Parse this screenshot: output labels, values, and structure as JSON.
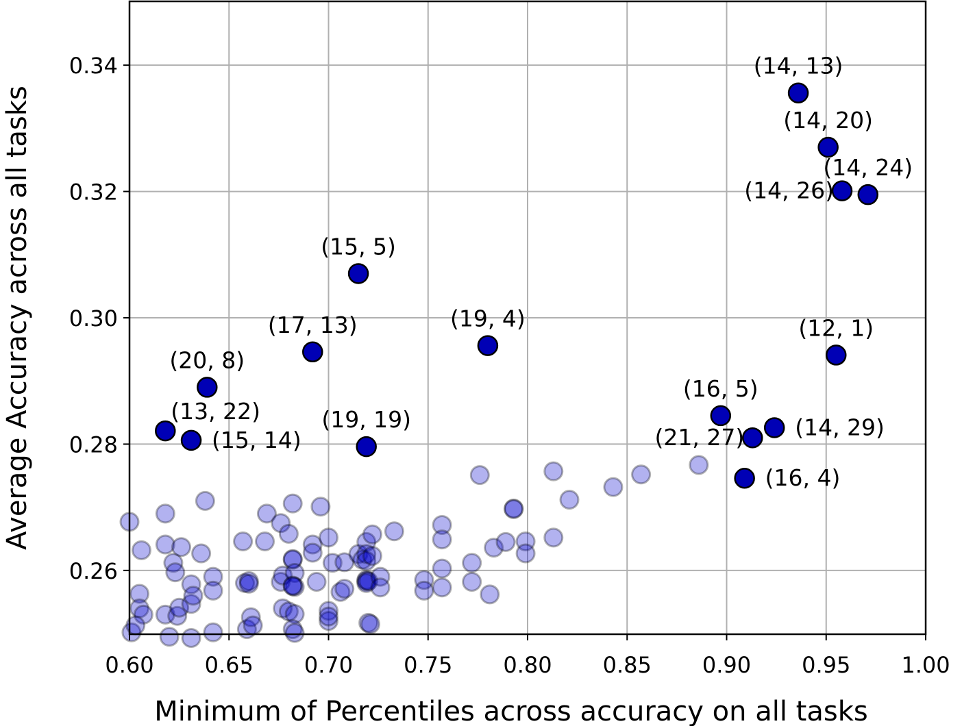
{
  "chart_data": {
    "type": "scatter",
    "xlabel": "Minimum of Percentiles across accuracy on all tasks",
    "ylabel": "Average Accuracy across all tasks",
    "xlim": [
      0.6,
      1.0
    ],
    "ylim": [
      0.2499,
      0.3501
    ],
    "xticks": [
      0.6,
      0.65,
      0.7,
      0.75,
      0.8,
      0.85,
      0.9,
      0.95,
      1.0
    ],
    "xtick_labels": [
      "0.60",
      "0.65",
      "0.70",
      "0.75",
      "0.80",
      "0.85",
      "0.90",
      "0.95",
      "1.00"
    ],
    "yticks": [
      0.26,
      0.28,
      0.3,
      0.32,
      0.34
    ],
    "ytick_labels": [
      "0.26",
      "0.28",
      "0.30",
      "0.32",
      "0.34"
    ],
    "grid": true,
    "highlight_color": "#0000b5",
    "background_color": "#0000cd",
    "highlighted": [
      {
        "label": "(14, 13)",
        "x": 0.936,
        "y": 0.3356,
        "label_pos": "above"
      },
      {
        "label": "(14, 20)",
        "x": 0.951,
        "y": 0.327,
        "label_pos": "above"
      },
      {
        "label": "(14, 24)",
        "x": 0.971,
        "y": 0.3195,
        "label_pos": "above"
      },
      {
        "label": "(14, 26)",
        "x": 0.958,
        "y": 0.3201,
        "label_pos": "left"
      },
      {
        "label": "(15, 5)",
        "x": 0.715,
        "y": 0.307,
        "label_pos": "above"
      },
      {
        "label": "(19, 4)",
        "x": 0.78,
        "y": 0.2956,
        "label_pos": "above"
      },
      {
        "label": "(17, 13)",
        "x": 0.692,
        "y": 0.2946,
        "label_pos": "above"
      },
      {
        "label": "(12, 1)",
        "x": 0.955,
        "y": 0.2941,
        "label_pos": "above"
      },
      {
        "label": "(20, 8)",
        "x": 0.639,
        "y": 0.289,
        "label_pos": "above"
      },
      {
        "label": "(16, 5)",
        "x": 0.897,
        "y": 0.2845,
        "label_pos": "above"
      },
      {
        "label": "(13, 22)",
        "x": 0.618,
        "y": 0.2821,
        "label_pos": "above-right"
      },
      {
        "label": "(14, 29)",
        "x": 0.924,
        "y": 0.2826,
        "label_pos": "right"
      },
      {
        "label": "(21, 27)",
        "x": 0.913,
        "y": 0.281,
        "label_pos": "left"
      },
      {
        "label": "(15, 14)",
        "x": 0.631,
        "y": 0.2806,
        "label_pos": "right"
      },
      {
        "label": "(19, 19)",
        "x": 0.719,
        "y": 0.2796,
        "label_pos": "above"
      },
      {
        "label": "(16, 4)",
        "x": 0.909,
        "y": 0.2746,
        "label_pos": "right"
      }
    ],
    "background_points": [
      [
        0.6,
        0.2677
      ],
      [
        0.605,
        0.2563
      ],
      [
        0.605,
        0.254
      ],
      [
        0.607,
        0.253
      ],
      [
        0.606,
        0.2632
      ],
      [
        0.601,
        0.2502
      ],
      [
        0.603,
        0.2513
      ],
      [
        0.618,
        0.269
      ],
      [
        0.618,
        0.2641
      ],
      [
        0.618,
        0.253
      ],
      [
        0.622,
        0.2612
      ],
      [
        0.623,
        0.2597
      ],
      [
        0.624,
        0.2528
      ],
      [
        0.625,
        0.2541
      ],
      [
        0.626,
        0.2637
      ],
      [
        0.631,
        0.2578
      ],
      [
        0.631,
        0.2547
      ],
      [
        0.632,
        0.256
      ],
      [
        0.638,
        0.271
      ],
      [
        0.636,
        0.2627
      ],
      [
        0.642,
        0.259
      ],
      [
        0.642,
        0.2568
      ],
      [
        0.642,
        0.2502
      ],
      [
        0.62,
        0.2495
      ],
      [
        0.631,
        0.2493
      ],
      [
        0.657,
        0.2646
      ],
      [
        0.658,
        0.258
      ],
      [
        0.66,
        0.2583
      ],
      [
        0.66,
        0.2579
      ],
      [
        0.659,
        0.2507
      ],
      [
        0.661,
        0.2526
      ],
      [
        0.662,
        0.2513
      ],
      [
        0.669,
        0.269
      ],
      [
        0.668,
        0.2646
      ],
      [
        0.676,
        0.2675
      ],
      [
        0.676,
        0.2582
      ],
      [
        0.677,
        0.2592
      ],
      [
        0.677,
        0.254
      ],
      [
        0.68,
        0.2658
      ],
      [
        0.68,
        0.2535
      ],
      [
        0.682,
        0.2706
      ],
      [
        0.682,
        0.2617
      ],
      [
        0.682,
        0.2618
      ],
      [
        0.683,
        0.2596
      ],
      [
        0.683,
        0.2574
      ],
      [
        0.682,
        0.2576
      ],
      [
        0.682,
        0.2575
      ],
      [
        0.683,
        0.2531
      ],
      [
        0.682,
        0.2507
      ],
      [
        0.683,
        0.2501
      ],
      [
        0.692,
        0.2641
      ],
      [
        0.692,
        0.2628
      ],
      [
        0.694,
        0.2582
      ],
      [
        0.696,
        0.2701
      ],
      [
        0.7,
        0.2652
      ],
      [
        0.7,
        0.2536
      ],
      [
        0.7,
        0.252
      ],
      [
        0.7,
        0.2527
      ],
      [
        0.702,
        0.2612
      ],
      [
        0.706,
        0.2566
      ],
      [
        0.708,
        0.2571
      ],
      [
        0.708,
        0.2613
      ],
      [
        0.715,
        0.2626
      ],
      [
        0.717,
        0.2617
      ],
      [
        0.719,
        0.2645
      ],
      [
        0.719,
        0.2626
      ],
      [
        0.719,
        0.2615
      ],
      [
        0.719,
        0.2585
      ],
      [
        0.719,
        0.2583
      ],
      [
        0.719,
        0.258
      ],
      [
        0.72,
        0.2583
      ],
      [
        0.72,
        0.2517
      ],
      [
        0.721,
        0.2515
      ],
      [
        0.722,
        0.2657
      ],
      [
        0.722,
        0.2623
      ],
      [
        0.726,
        0.259
      ],
      [
        0.726,
        0.2573
      ],
      [
        0.733,
        0.2662
      ],
      [
        0.748,
        0.2585
      ],
      [
        0.748,
        0.2568
      ],
      [
        0.757,
        0.2672
      ],
      [
        0.757,
        0.2649
      ],
      [
        0.757,
        0.2603
      ],
      [
        0.757,
        0.2573
      ],
      [
        0.772,
        0.2612
      ],
      [
        0.772,
        0.2582
      ],
      [
        0.776,
        0.2751
      ],
      [
        0.781,
        0.2562
      ],
      [
        0.783,
        0.2636
      ],
      [
        0.789,
        0.2645
      ],
      [
        0.793,
        0.2698
      ],
      [
        0.793,
        0.2697
      ],
      [
        0.799,
        0.2646
      ],
      [
        0.799,
        0.2627
      ],
      [
        0.813,
        0.2757
      ],
      [
        0.813,
        0.2652
      ],
      [
        0.821,
        0.2712
      ],
      [
        0.843,
        0.2732
      ],
      [
        0.857,
        0.2752
      ],
      [
        0.886,
        0.2767
      ]
    ]
  }
}
